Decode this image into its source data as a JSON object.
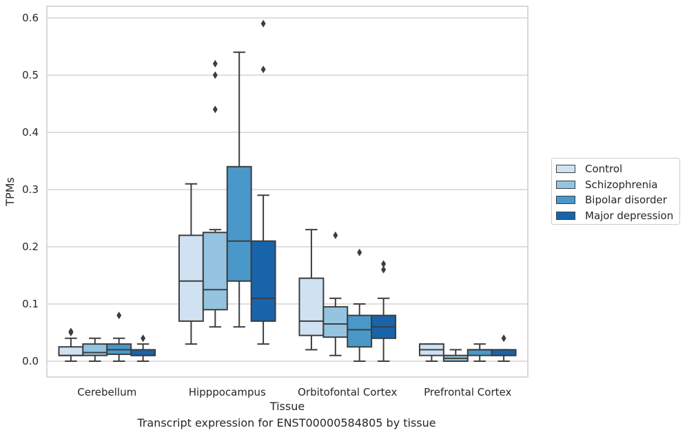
{
  "chart_data": {
    "type": "box",
    "title": "",
    "xlabel": "Tissue",
    "ylabel": "TPMs",
    "caption": "Transcript expression for ENST00000584805 by tissue",
    "ylim": [
      -0.028,
      0.62
    ],
    "yticks": [
      "0.0",
      "0.1",
      "0.2",
      "0.3",
      "0.4",
      "0.5",
      "0.6"
    ],
    "ytick_values": [
      0,
      0.1,
      0.2,
      0.3,
      0.4,
      0.5,
      0.6
    ],
    "grid": "horizontal",
    "legend_position": "right",
    "categories": [
      "Cerebellum",
      "Hipppocampus",
      "Orbitofontal Cortex",
      "Prefrontal Cortex"
    ],
    "series": [
      {
        "name": "Control",
        "color": "#d0e1f2",
        "boxes": [
          {
            "whislo": 0.0,
            "q1": 0.01,
            "med": 0.01,
            "q3": 0.025,
            "whishi": 0.04,
            "fliers": [
              0.05,
              0.052
            ]
          },
          {
            "whislo": 0.03,
            "q1": 0.07,
            "med": 0.14,
            "q3": 0.22,
            "whishi": 0.31,
            "fliers": []
          },
          {
            "whislo": 0.02,
            "q1": 0.045,
            "med": 0.07,
            "q3": 0.145,
            "whishi": 0.23,
            "fliers": []
          },
          {
            "whislo": 0.0,
            "q1": 0.01,
            "med": 0.02,
            "q3": 0.03,
            "whishi": 0.03,
            "fliers": []
          }
        ]
      },
      {
        "name": "Schizophrenia",
        "color": "#94c4df",
        "boxes": [
          {
            "whislo": 0.0,
            "q1": 0.01,
            "med": 0.015,
            "q3": 0.03,
            "whishi": 0.04,
            "fliers": []
          },
          {
            "whislo": 0.06,
            "q1": 0.09,
            "med": 0.125,
            "q3": 0.225,
            "whishi": 0.23,
            "fliers": [
              0.44,
              0.5,
              0.52
            ]
          },
          {
            "whislo": 0.01,
            "q1": 0.042,
            "med": 0.065,
            "q3": 0.095,
            "whishi": 0.11,
            "fliers": [
              0.22
            ]
          },
          {
            "whislo": 0.0,
            "q1": 0.0,
            "med": 0.005,
            "q3": 0.01,
            "whishi": 0.02,
            "fliers": []
          }
        ]
      },
      {
        "name": "Bipolar disorder",
        "color": "#4a98c9",
        "boxes": [
          {
            "whislo": 0.0,
            "q1": 0.012,
            "med": 0.02,
            "q3": 0.03,
            "whishi": 0.04,
            "fliers": [
              0.08
            ]
          },
          {
            "whislo": 0.06,
            "q1": 0.14,
            "med": 0.21,
            "q3": 0.34,
            "whishi": 0.54,
            "fliers": []
          },
          {
            "whislo": 0.0,
            "q1": 0.025,
            "med": 0.055,
            "q3": 0.08,
            "whishi": 0.1,
            "fliers": [
              0.19
            ]
          },
          {
            "whislo": 0.0,
            "q1": 0.01,
            "med": 0.02,
            "q3": 0.02,
            "whishi": 0.03,
            "fliers": []
          }
        ]
      },
      {
        "name": "Major depression",
        "color": "#1764ab",
        "boxes": [
          {
            "whislo": 0.0,
            "q1": 0.01,
            "med": 0.01,
            "q3": 0.02,
            "whishi": 0.03,
            "fliers": [
              0.04
            ]
          },
          {
            "whislo": 0.03,
            "q1": 0.07,
            "med": 0.11,
            "q3": 0.21,
            "whishi": 0.29,
            "fliers": [
              0.51,
              0.59
            ]
          },
          {
            "whislo": 0.0,
            "q1": 0.04,
            "med": 0.06,
            "q3": 0.08,
            "whishi": 0.11,
            "fliers": [
              0.16,
              0.17
            ]
          },
          {
            "whislo": 0.0,
            "q1": 0.01,
            "med": 0.01,
            "q3": 0.02,
            "whishi": 0.02,
            "fliers": [
              0.04
            ]
          }
        ]
      }
    ]
  }
}
